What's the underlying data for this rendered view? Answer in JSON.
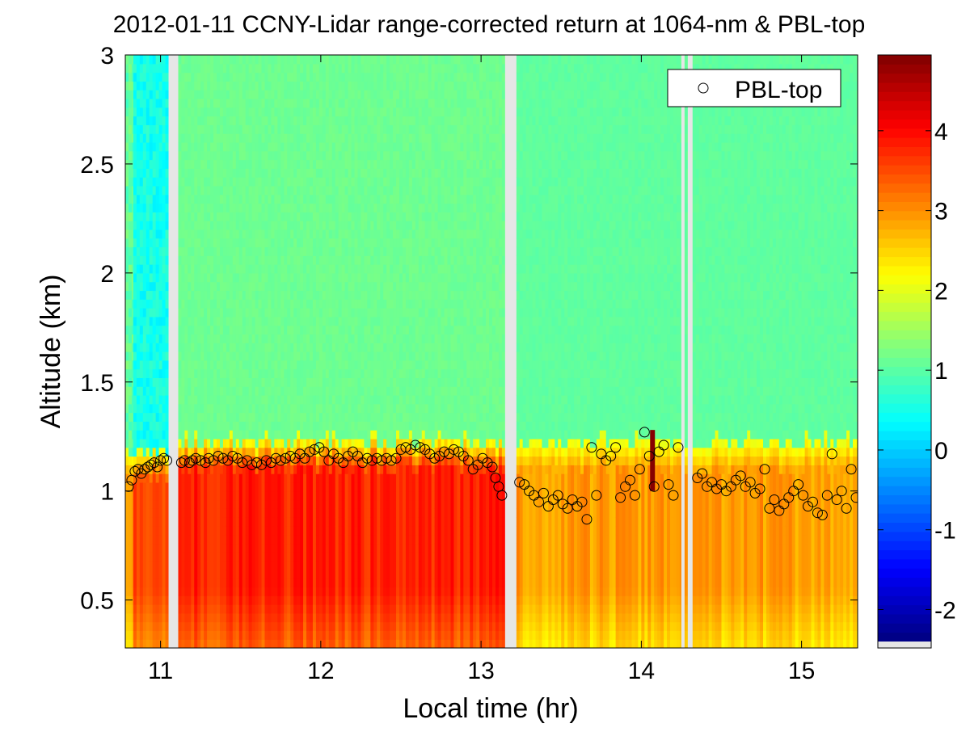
{
  "chart_data": {
    "type": "heatmap",
    "title": "2012-01-11 CCNY-Lidar range-corrected return at 1064-nm & PBL-top",
    "xlabel": "Local time (hr)",
    "ylabel": "Altitude (km)",
    "xlim": [
      10.78,
      15.35
    ],
    "ylim": [
      0.28,
      3.0
    ],
    "xticks": [
      {
        "value": 11,
        "label": "11"
      },
      {
        "value": 12,
        "label": "12"
      },
      {
        "value": 13,
        "label": "13"
      },
      {
        "value": 14,
        "label": "14"
      },
      {
        "value": 15,
        "label": "15"
      }
    ],
    "yticks": [
      {
        "value": 0.5,
        "label": "0.5"
      },
      {
        "value": 1,
        "label": "1"
      },
      {
        "value": 1.5,
        "label": "1.5"
      },
      {
        "value": 2,
        "label": "2"
      },
      {
        "value": 2.5,
        "label": "2.5"
      },
      {
        "value": 3,
        "label": "3"
      }
    ],
    "colorbar": {
      "range": [
        -2.4,
        4.95
      ],
      "colormap": "jet",
      "ticks": [
        {
          "value": -2,
          "label": "-2"
        },
        {
          "value": -1,
          "label": "-1"
        },
        {
          "value": 0,
          "label": "0"
        },
        {
          "value": 1,
          "label": "1"
        },
        {
          "value": 2,
          "label": "2"
        },
        {
          "value": 3,
          "label": "3"
        },
        {
          "value": 4,
          "label": "4"
        }
      ]
    },
    "data_gaps": [
      [
        11.05,
        11.11
      ],
      [
        13.15,
        13.22
      ],
      [
        14.25,
        14.27
      ],
      [
        14.29,
        14.32
      ]
    ],
    "regions": [
      {
        "t0": 10.78,
        "t1": 10.83,
        "pbl": 1.1,
        "low": 3.0,
        "aloft": 1.05,
        "aloft_noise": 0.55
      },
      {
        "t0": 10.83,
        "t1": 11.05,
        "pbl": 1.12,
        "low": 3.5,
        "aloft": 0.5,
        "aloft_noise": 0.5
      },
      {
        "t0": 11.11,
        "t1": 13.15,
        "pbl": 1.15,
        "low": 3.8,
        "aloft": 1.15,
        "aloft_noise": 0.15
      },
      {
        "t0": 13.22,
        "t1": 15.35,
        "pbl": 1.15,
        "low": 2.9,
        "aloft": 1.05,
        "aloft_noise": 0.12
      }
    ],
    "spike": {
      "time": 14.07,
      "from": 1.0,
      "to": 1.28,
      "value": 4.9
    },
    "legend": {
      "label": "PBL-top",
      "marker": "open-circle",
      "location": "top-right"
    },
    "series": [
      {
        "name": "PBL-top",
        "x": [
          10.8,
          10.82,
          10.84,
          10.86,
          10.88,
          10.9,
          10.92,
          10.94,
          10.96,
          10.98,
          11.0,
          11.02,
          11.04,
          11.13,
          11.15,
          11.18,
          11.2,
          11.22,
          11.25,
          11.28,
          11.3,
          11.33,
          11.36,
          11.39,
          11.42,
          11.45,
          11.48,
          11.51,
          11.54,
          11.57,
          11.6,
          11.63,
          11.66,
          11.69,
          11.72,
          11.75,
          11.78,
          11.81,
          11.84,
          11.87,
          11.9,
          11.93,
          11.96,
          11.99,
          12.02,
          12.05,
          12.08,
          12.11,
          12.14,
          12.17,
          12.2,
          12.23,
          12.26,
          12.29,
          12.32,
          12.35,
          12.38,
          12.41,
          12.44,
          12.47,
          12.5,
          12.53,
          12.56,
          12.59,
          12.62,
          12.65,
          12.68,
          12.71,
          12.74,
          12.77,
          12.8,
          12.83,
          12.86,
          12.89,
          12.92,
          12.95,
          12.98,
          13.01,
          13.04,
          13.07,
          13.09,
          13.11,
          13.13,
          13.24,
          13.27,
          13.3,
          13.33,
          13.36,
          13.39,
          13.42,
          13.45,
          13.48,
          13.51,
          13.54,
          13.57,
          13.6,
          13.63,
          13.66,
          13.69,
          13.72,
          13.75,
          13.78,
          13.81,
          13.84,
          13.87,
          13.9,
          13.93,
          13.96,
          13.99,
          14.02,
          14.05,
          14.08,
          14.11,
          14.14,
          14.17,
          14.2,
          14.23,
          14.35,
          14.38,
          14.41,
          14.44,
          14.47,
          14.5,
          14.53,
          14.56,
          14.59,
          14.62,
          14.65,
          14.68,
          14.71,
          14.74,
          14.77,
          14.8,
          14.83,
          14.86,
          14.89,
          14.92,
          14.95,
          14.98,
          15.01,
          15.04,
          15.07,
          15.1,
          15.13,
          15.16,
          15.19,
          15.22,
          15.25,
          15.28,
          15.31,
          15.34
        ],
        "y": [
          1.02,
          1.05,
          1.09,
          1.1,
          1.08,
          1.1,
          1.11,
          1.12,
          1.13,
          1.11,
          1.14,
          1.15,
          1.14,
          1.13,
          1.14,
          1.13,
          1.14,
          1.15,
          1.14,
          1.13,
          1.15,
          1.14,
          1.16,
          1.15,
          1.14,
          1.16,
          1.15,
          1.13,
          1.14,
          1.12,
          1.13,
          1.12,
          1.14,
          1.13,
          1.15,
          1.14,
          1.15,
          1.16,
          1.15,
          1.17,
          1.15,
          1.18,
          1.19,
          1.2,
          1.18,
          1.14,
          1.17,
          1.15,
          1.13,
          1.16,
          1.18,
          1.16,
          1.13,
          1.15,
          1.14,
          1.15,
          1.14,
          1.15,
          1.14,
          1.15,
          1.19,
          1.2,
          1.19,
          1.21,
          1.2,
          1.19,
          1.17,
          1.15,
          1.16,
          1.18,
          1.17,
          1.19,
          1.18,
          1.16,
          1.14,
          1.1,
          1.12,
          1.15,
          1.13,
          1.11,
          1.06,
          1.02,
          0.98,
          1.04,
          1.03,
          1.0,
          0.98,
          0.95,
          0.99,
          0.93,
          0.96,
          0.98,
          0.94,
          0.92,
          0.96,
          0.93,
          0.95,
          0.87,
          1.2,
          0.98,
          1.17,
          1.14,
          1.16,
          1.2,
          0.97,
          1.02,
          1.05,
          0.98,
          1.1,
          1.27,
          1.16,
          1.02,
          1.18,
          1.21,
          1.03,
          0.98,
          1.2,
          1.06,
          1.08,
          1.02,
          1.04,
          1.01,
          1.03,
          1.0,
          1.02,
          1.05,
          1.07,
          1.02,
          1.04,
          0.99,
          1.01,
          1.1,
          0.92,
          0.96,
          0.91,
          0.94,
          0.97,
          1.0,
          1.03,
          0.98,
          0.93,
          0.95,
          0.9,
          0.89,
          0.98,
          1.17,
          0.96,
          1.0,
          0.92,
          1.1,
          0.97
        ]
      }
    ]
  }
}
